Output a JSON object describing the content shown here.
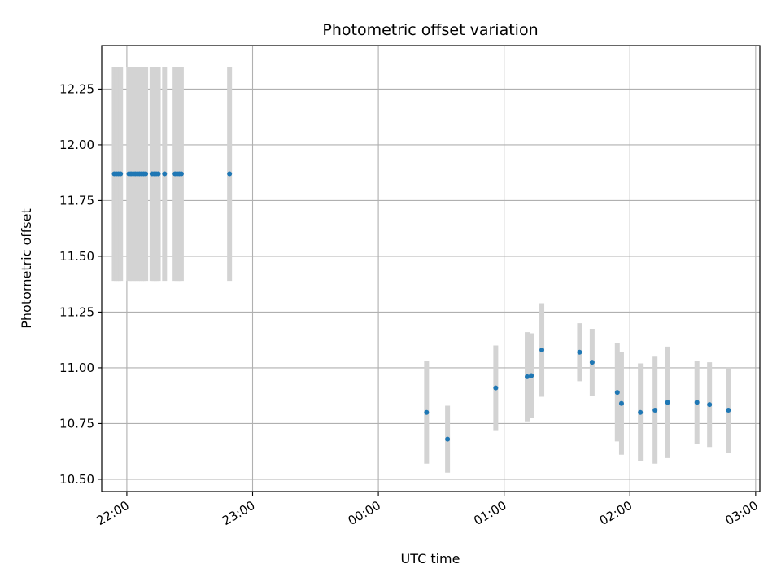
{
  "chart_data": {
    "type": "scatter",
    "title": "Photometric offset variation",
    "xlabel": "UTC time",
    "ylabel": "Photometric offset",
    "x_axis_type": "time",
    "x_reference_date": "",
    "xlim": [
      "21:48",
      "03:02"
    ],
    "ylim": [
      10.445,
      12.445
    ],
    "x_ticks": [
      "22:00",
      "23:00",
      "00:00",
      "01:00",
      "02:00",
      "03:00"
    ],
    "y_ticks": [
      10.5,
      10.75,
      11.0,
      11.25,
      11.5,
      11.75,
      12.0,
      12.25
    ],
    "y_tick_labels": [
      "10.50",
      "10.75",
      "11.00",
      "11.25",
      "11.50",
      "11.75",
      "12.00",
      "12.25"
    ],
    "grid": true,
    "marker_color": "#1f77b4",
    "errorbar_color": "#d3d3d3",
    "series": [
      {
        "points": [
          {
            "t": "21:54",
            "y": 11.87,
            "err": 0.48
          },
          {
            "t": "21:55",
            "y": 11.87,
            "err": 0.48
          },
          {
            "t": "21:56",
            "y": 11.87,
            "err": 0.48
          },
          {
            "t": "21:57",
            "y": 11.87,
            "err": 0.48
          },
          {
            "t": "22:01",
            "y": 11.87,
            "err": 0.48
          },
          {
            "t": "22:02",
            "y": 11.87,
            "err": 0.48
          },
          {
            "t": "22:03",
            "y": 11.87,
            "err": 0.48
          },
          {
            "t": "22:04",
            "y": 11.87,
            "err": 0.48
          },
          {
            "t": "22:05",
            "y": 11.87,
            "err": 0.48
          },
          {
            "t": "22:06",
            "y": 11.87,
            "err": 0.48
          },
          {
            "t": "22:07",
            "y": 11.87,
            "err": 0.48
          },
          {
            "t": "22:08",
            "y": 11.87,
            "err": 0.48
          },
          {
            "t": "22:09",
            "y": 11.87,
            "err": 0.48
          },
          {
            "t": "22:12",
            "y": 11.87,
            "err": 0.48
          },
          {
            "t": "22:13",
            "y": 11.87,
            "err": 0.48
          },
          {
            "t": "22:14",
            "y": 11.87,
            "err": 0.48
          },
          {
            "t": "22:15",
            "y": 11.87,
            "err": 0.48
          },
          {
            "t": "22:18",
            "y": 11.87,
            "err": 0.48
          },
          {
            "t": "22:23",
            "y": 11.87,
            "err": 0.48
          },
          {
            "t": "22:24",
            "y": 11.87,
            "err": 0.48
          },
          {
            "t": "22:25",
            "y": 11.87,
            "err": 0.48
          },
          {
            "t": "22:26",
            "y": 11.87,
            "err": 0.48
          },
          {
            "t": "22:49",
            "y": 11.87,
            "err": 0.48
          },
          {
            "t": "00:23",
            "y": 10.8,
            "err": 0.23
          },
          {
            "t": "00:33",
            "y": 10.68,
            "err": 0.15
          },
          {
            "t": "00:56",
            "y": 10.91,
            "err": 0.19
          },
          {
            "t": "01:11",
            "y": 10.96,
            "err": 0.2
          },
          {
            "t": "01:13",
            "y": 10.965,
            "err": 0.19
          },
          {
            "t": "01:18",
            "y": 11.08,
            "err": 0.21
          },
          {
            "t": "01:36",
            "y": 11.07,
            "err": 0.13
          },
          {
            "t": "01:42",
            "y": 11.025,
            "err": 0.15
          },
          {
            "t": "01:54",
            "y": 10.89,
            "err": 0.22
          },
          {
            "t": "01:56",
            "y": 10.84,
            "err": 0.23
          },
          {
            "t": "02:05",
            "y": 10.8,
            "err": 0.22
          },
          {
            "t": "02:12",
            "y": 10.81,
            "err": 0.24
          },
          {
            "t": "02:18",
            "y": 10.845,
            "err": 0.25
          },
          {
            "t": "02:32",
            "y": 10.845,
            "err": 0.185
          },
          {
            "t": "02:38",
            "y": 10.835,
            "err": 0.19
          },
          {
            "t": "02:47",
            "y": 10.81,
            "err": 0.19
          }
        ]
      }
    ]
  }
}
